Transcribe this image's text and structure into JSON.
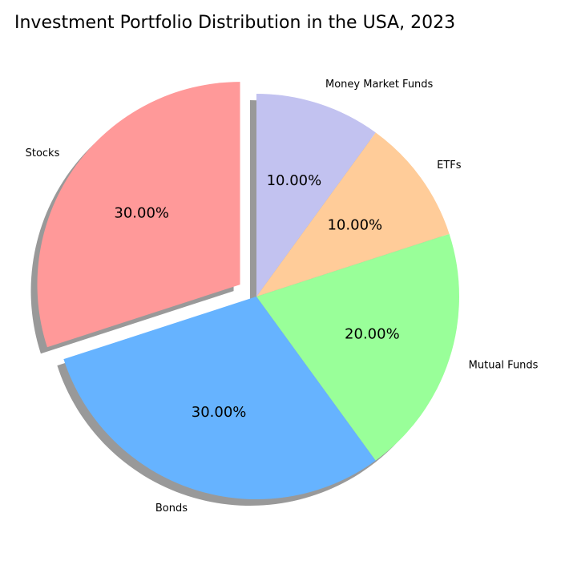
{
  "chart_data": {
    "type": "pie",
    "title": "Investment Portfolio Distribution in the USA, 2023",
    "start_angle_deg": 90,
    "direction": "counterclockwise",
    "shadow": true,
    "slices": [
      {
        "label": "Stocks",
        "value": 30,
        "value_label": "30.00%",
        "color": "#ff9999",
        "exploded": true
      },
      {
        "label": "Bonds",
        "value": 30,
        "value_label": "30.00%",
        "color": "#66b3ff",
        "exploded": false
      },
      {
        "label": "Mutual Funds",
        "value": 20,
        "value_label": "20.00%",
        "color": "#99ff99",
        "exploded": false
      },
      {
        "label": "ETFs",
        "value": 10,
        "value_label": "10.00%",
        "color": "#ffcc99",
        "exploded": false
      },
      {
        "label": "Money Market Funds",
        "value": 10,
        "value_label": "10.00%",
        "color": "#c2c2f0",
        "exploded": false
      }
    ]
  }
}
